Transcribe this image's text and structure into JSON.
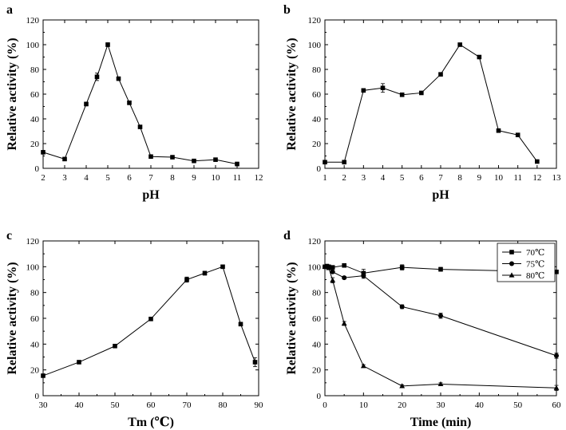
{
  "chart_data": [
    {
      "panel": "a",
      "type": "line",
      "xlabel": "pH",
      "ylabel": "Relative activity (%)",
      "xlim": [
        2,
        12
      ],
      "ylim": [
        0,
        120
      ],
      "xticks": [
        2,
        3,
        4,
        5,
        6,
        7,
        8,
        9,
        10,
        11,
        12
      ],
      "yticks": [
        0,
        20,
        40,
        60,
        80,
        100,
        120
      ],
      "series": [
        {
          "marker": "square",
          "x": [
            2,
            3,
            4,
            4.5,
            5,
            5.5,
            6,
            6.5,
            7,
            8,
            9,
            10,
            11
          ],
          "y": [
            13,
            7.5,
            52,
            74,
            100,
            72.5,
            53,
            33.5,
            9.5,
            9,
            6,
            7,
            3.5
          ],
          "err": [
            1,
            0.5,
            1.5,
            3,
            1.5,
            1,
            1.5,
            1,
            1.5,
            1,
            0.5,
            1,
            1.5
          ]
        }
      ]
    },
    {
      "panel": "b",
      "type": "line",
      "xlabel": "pH",
      "ylabel": "Relative activity (%)",
      "xlim": [
        1,
        13
      ],
      "ylim": [
        0,
        120
      ],
      "xticks": [
        1,
        2,
        3,
        4,
        5,
        6,
        7,
        8,
        9,
        10,
        11,
        12,
        13
      ],
      "yticks": [
        0,
        20,
        40,
        60,
        80,
        100,
        120
      ],
      "series": [
        {
          "marker": "square",
          "x": [
            1,
            2,
            3,
            4,
            5,
            6,
            7,
            8,
            9,
            10,
            11,
            12
          ],
          "y": [
            5,
            5,
            63,
            65,
            59.5,
            61,
            76,
            100,
            90,
            30.5,
            27,
            5.5
          ],
          "err": [
            0.5,
            0.5,
            0.5,
            3.5,
            1.5,
            0.5,
            0.5,
            1,
            0.5,
            1.5,
            0.5,
            0.5
          ]
        }
      ]
    },
    {
      "panel": "c",
      "type": "line",
      "xlabel": "Tm (℃)",
      "ylabel": "Relative activity (%)",
      "xlim": [
        30,
        90
      ],
      "ylim": [
        0,
        120
      ],
      "xticks": [
        30,
        40,
        50,
        60,
        70,
        80,
        90
      ],
      "yticks": [
        0,
        20,
        40,
        60,
        80,
        100,
        120
      ],
      "series": [
        {
          "marker": "square",
          "x": [
            30,
            40,
            50,
            60,
            70,
            75,
            80,
            85,
            89
          ],
          "y": [
            15.5,
            26,
            38.5,
            59.5,
            90,
            95,
            100,
            55.5,
            26
          ],
          "err": [
            0.5,
            0.5,
            1,
            0.5,
            2,
            1.5,
            1,
            0.5,
            3.5
          ]
        }
      ]
    },
    {
      "panel": "d",
      "type": "line",
      "xlabel": "Time (min)",
      "ylabel": "Relative activity (%)",
      "xlim": [
        0,
        60
      ],
      "ylim": [
        0,
        120
      ],
      "xticks": [
        0,
        10,
        20,
        30,
        40,
        50,
        60
      ],
      "yticks": [
        0,
        20,
        40,
        60,
        80,
        100,
        120
      ],
      "legend_position": "top-right",
      "series": [
        {
          "name": "70℃",
          "marker": "square",
          "x": [
            0,
            0.5,
            1,
            2,
            5,
            10,
            20,
            30,
            60
          ],
          "y": [
            100,
            100.5,
            100,
            99.5,
            101,
            95,
            99.5,
            98,
            96
          ],
          "err": [
            1,
            1,
            1,
            1,
            1,
            3,
            2,
            1.5,
            0.5
          ]
        },
        {
          "name": "75℃",
          "marker": "circle",
          "x": [
            0,
            0.5,
            1,
            2,
            5,
            10,
            20,
            30,
            60
          ],
          "y": [
            100,
            100,
            100,
            96,
            91.5,
            93,
            69,
            62,
            31
          ],
          "err": [
            1,
            1,
            1,
            1,
            1,
            2,
            1.5,
            2,
            2
          ]
        },
        {
          "name": "80℃",
          "marker": "triangle",
          "x": [
            0,
            0.5,
            1,
            2,
            5,
            10,
            20,
            30,
            60
          ],
          "y": [
            100,
            100,
            99,
            89.5,
            56,
            23,
            7.5,
            9,
            6
          ],
          "err": [
            1,
            1,
            1,
            2,
            1.5,
            1,
            1,
            1,
            2
          ]
        }
      ]
    }
  ]
}
